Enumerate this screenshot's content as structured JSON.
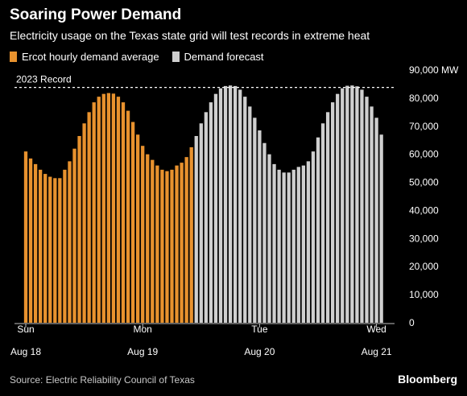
{
  "title": "Soaring Power Demand",
  "subtitle": "Electricity usage on the Texas state grid will test records in extreme heat",
  "legend": [
    {
      "label": "Ercot hourly demand average",
      "color": "#e8922e"
    },
    {
      "label": "Demand forecast",
      "color": "#cfcfcf"
    }
  ],
  "source": "Source: Electric Reliability Council of Texas",
  "brand": "Bloomberg",
  "chart_data": {
    "type": "bar",
    "title": "Soaring Power Demand",
    "subtitle": "Electricity usage on the Texas state grid will test records in extreme heat",
    "y_unit": "MW",
    "ylim": [
      0,
      90000
    ],
    "y_ticks": [
      "0",
      "10,000",
      "20,000",
      "30,000",
      "40,000",
      "50,000",
      "60,000",
      "70,000",
      "80,000",
      "90,000 MW"
    ],
    "x_ticks": [
      {
        "line1": "Sun",
        "line2": "Aug 18",
        "index": 0
      },
      {
        "line1": "Mon",
        "line2": "Aug 19",
        "index": 24
      },
      {
        "line1": "Tue",
        "line2": "Aug 20",
        "index": 48
      },
      {
        "line1": "Wed",
        "line2": "Aug 21",
        "index": 72
      }
    ],
    "reference_line": {
      "label": "2023 Record",
      "value": 83800,
      "style": "dashed"
    },
    "grid": false,
    "legend_position": "top-left",
    "series": [
      {
        "name": "Ercot hourly demand average",
        "color": "#e8922e",
        "start_index": 0,
        "values": [
          61000,
          58500,
          56500,
          54500,
          53000,
          52000,
          51500,
          51500,
          54500,
          57500,
          62000,
          66500,
          71000,
          75000,
          78500,
          80500,
          81500,
          81800,
          81600,
          80500,
          78500,
          75500,
          71500,
          67000,
          63000,
          60000,
          58000,
          56000,
          54500,
          54000,
          54500,
          56000,
          57000,
          59000,
          62500
        ]
      },
      {
        "name": "Demand forecast",
        "color": "#cfcfcf",
        "start_index": 35,
        "values": [
          66500,
          71000,
          75000,
          78500,
          81500,
          83500,
          84300,
          84500,
          84300,
          83000,
          80500,
          77000,
          73000,
          68500,
          64000,
          60000,
          56500,
          54500,
          53500,
          53500,
          54500,
          55500,
          56000,
          57500,
          61000,
          66000,
          71000,
          75000,
          78500,
          81500,
          83500,
          84400,
          84500,
          84200,
          83000,
          80500,
          77000,
          73000,
          67000
        ]
      }
    ]
  }
}
